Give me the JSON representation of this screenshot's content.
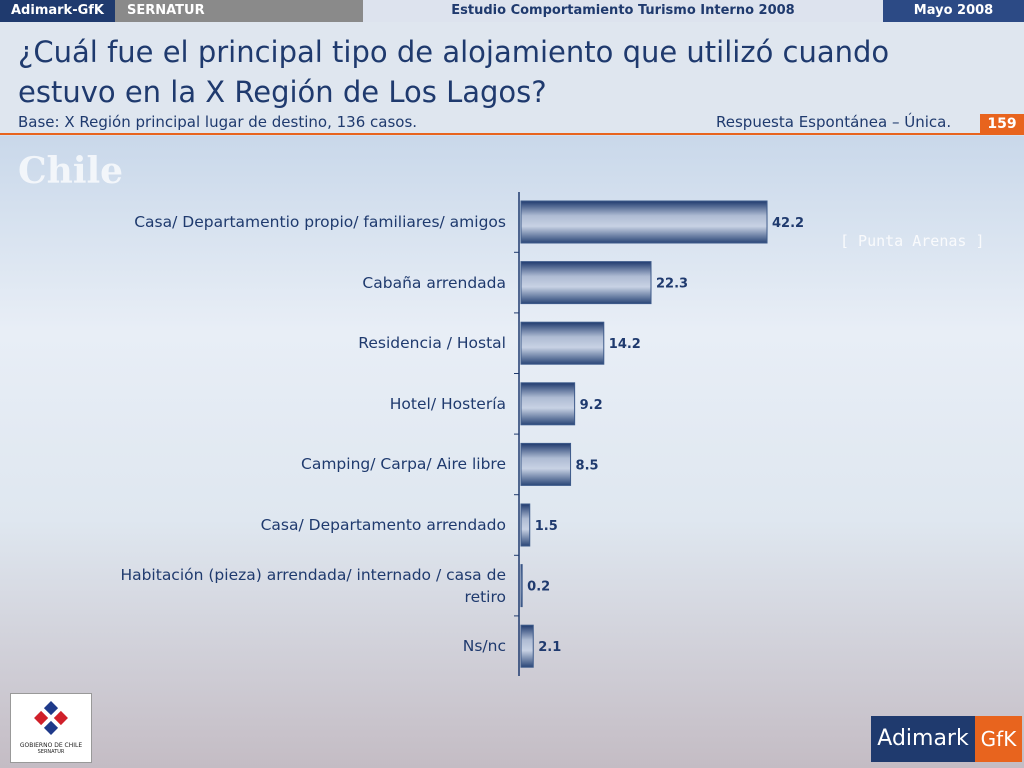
{
  "header": {
    "brand": "Adimark-GfK",
    "client": "SERNATUR",
    "study": "Estudio Comportamiento Turismo Interno 2008",
    "date": "Mayo 2008"
  },
  "title": "¿Cuál fue el principal tipo de alojamiento que utilizó cuando estuvo en la X Región de Los Lagos?",
  "base": "Base: X Región principal lugar de destino, 136 casos.",
  "note": "Respuesta Espontánea – Única.",
  "page_number": "159",
  "background": {
    "slogan": "Chile",
    "place": "[ Punta Arenas ]"
  },
  "logos": {
    "government": "GOBIERNO DE CHILE",
    "agency": "SERNATUR",
    "company": "Adimark",
    "partner": "GfK"
  },
  "chart_data": {
    "type": "hbar",
    "categories": [
      "Casa/ Departamentio propio/ familiares/ amigos",
      "Cabaña arrendada",
      "Residencia / Hostal",
      "Hotel/ Hostería",
      "Camping/ Carpa/ Aire libre",
      "Casa/ Departamento arrendado",
      "Habitación (pieza) arrendada/ internado / casa de retiro",
      "Ns/nc"
    ],
    "values": [
      42.2,
      22.3,
      14.2,
      9.2,
      8.5,
      1.5,
      0.2,
      2.1
    ],
    "color": "#3d5a8a"
  }
}
